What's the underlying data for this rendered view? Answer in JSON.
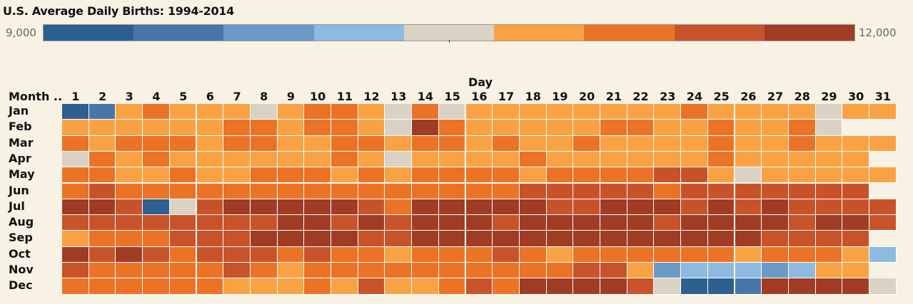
{
  "title": "U.S. Average Daily Births: 1994-2014",
  "legend": {
    "min_label": "9,000",
    "max_label": "12,000",
    "colors": [
      "#2d5f8f",
      "#4677a8",
      "#6a9ac8",
      "#8fbadf",
      "#dad2c4",
      "#f9a244",
      "#ec7226",
      "#c8532a",
      "#a03c24"
    ]
  },
  "chart_data": {
    "type": "heatmap",
    "title": "U.S. Average Daily Births: 1994-2014",
    "xlabel": "Day",
    "ylabel": "Month ..",
    "x": [
      "1",
      "2",
      "3",
      "4",
      "5",
      "6",
      "7",
      "8",
      "9",
      "10",
      "11",
      "12",
      "13",
      "14",
      "15",
      "16",
      "17",
      "18",
      "19",
      "20",
      "21",
      "22",
      "23",
      "24",
      "25",
      "26",
      "27",
      "28",
      "29",
      "30",
      "31"
    ],
    "y": [
      "Jan",
      "Feb",
      "Mar",
      "Apr",
      "May",
      "Jun",
      "Jul",
      "Aug",
      "Sep",
      "Oct",
      "Nov",
      "Dec"
    ],
    "value_range": [
      9000,
      12000
    ],
    "color_bins": 9,
    "bin_index": [
      [
        0,
        1,
        5,
        6,
        5,
        5,
        5,
        4,
        5,
        6,
        6,
        5,
        4,
        6,
        4,
        5,
        5,
        5,
        5,
        5,
        5,
        5,
        5,
        6,
        5,
        5,
        5,
        5,
        4,
        5,
        5
      ],
      [
        5,
        5,
        5,
        5,
        5,
        5,
        6,
        6,
        5,
        6,
        6,
        5,
        4,
        8,
        6,
        5,
        5,
        5,
        5,
        5,
        6,
        6,
        5,
        5,
        6,
        5,
        5,
        6,
        4,
        null,
        null
      ],
      [
        6,
        5,
        6,
        6,
        6,
        5,
        6,
        6,
        5,
        5,
        6,
        6,
        5,
        6,
        6,
        5,
        6,
        5,
        5,
        6,
        5,
        5,
        5,
        5,
        6,
        5,
        5,
        6,
        5,
        5,
        5
      ],
      [
        4,
        6,
        5,
        6,
        5,
        5,
        5,
        5,
        5,
        5,
        6,
        5,
        4,
        5,
        5,
        5,
        5,
        6,
        5,
        5,
        5,
        5,
        5,
        5,
        6,
        5,
        5,
        5,
        5,
        5,
        null
      ],
      [
        6,
        6,
        5,
        5,
        6,
        5,
        5,
        6,
        6,
        6,
        5,
        6,
        5,
        6,
        6,
        6,
        6,
        5,
        6,
        6,
        6,
        6,
        7,
        7,
        5,
        4,
        5,
        5,
        5,
        5,
        5
      ],
      [
        6,
        7,
        6,
        6,
        6,
        6,
        6,
        6,
        6,
        6,
        6,
        6,
        6,
        6,
        6,
        6,
        6,
        7,
        7,
        7,
        7,
        7,
        6,
        7,
        7,
        7,
        7,
        7,
        7,
        7,
        null
      ],
      [
        8,
        8,
        7,
        0,
        4,
        7,
        8,
        8,
        8,
        8,
        8,
        7,
        6,
        8,
        8,
        8,
        8,
        8,
        7,
        7,
        8,
        8,
        8,
        7,
        8,
        7,
        8,
        7,
        7,
        7,
        7
      ],
      [
        7,
        7,
        7,
        7,
        7,
        7,
        7,
        7,
        8,
        8,
        7,
        8,
        7,
        8,
        8,
        8,
        7,
        8,
        8,
        8,
        8,
        8,
        7,
        8,
        8,
        8,
        8,
        7,
        8,
        8,
        7
      ],
      [
        5,
        6,
        6,
        6,
        7,
        7,
        7,
        8,
        8,
        8,
        8,
        7,
        7,
        8,
        8,
        8,
        8,
        8,
        8,
        8,
        8,
        8,
        8,
        8,
        8,
        8,
        7,
        7,
        7,
        7,
        null
      ],
      [
        8,
        7,
        8,
        7,
        6,
        7,
        7,
        7,
        6,
        7,
        6,
        6,
        5,
        6,
        6,
        6,
        7,
        6,
        5,
        6,
        6,
        6,
        6,
        6,
        6,
        5,
        6,
        6,
        6,
        5,
        3
      ],
      [
        7,
        6,
        6,
        6,
        6,
        6,
        7,
        6,
        5,
        6,
        6,
        6,
        6,
        6,
        6,
        6,
        6,
        6,
        6,
        7,
        7,
        5,
        2,
        3,
        3,
        3,
        2,
        3,
        5,
        5,
        null
      ],
      [
        6,
        6,
        6,
        6,
        6,
        6,
        5,
        5,
        5,
        6,
        5,
        7,
        5,
        5,
        6,
        7,
        6,
        8,
        8,
        8,
        8,
        7,
        4,
        0,
        0,
        1,
        8,
        8,
        8,
        8,
        4
      ]
    ]
  }
}
